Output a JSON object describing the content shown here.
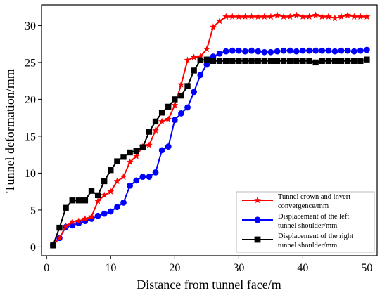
{
  "chart_data": {
    "type": "line",
    "xlabel": "Distance from tunnel face/m",
    "ylabel": "Tunnel deformation/mm",
    "xlim": [
      -0.8,
      51.6
    ],
    "ylim": [
      -1.2,
      32.8
    ],
    "xticks": [
      0,
      10,
      20,
      30,
      40,
      50
    ],
    "yticks": [
      0,
      5,
      10,
      15,
      20,
      25,
      30
    ],
    "grid": false,
    "legend_position": "lower-right",
    "series": [
      {
        "name": "Tunnel crown and invert convergence/mm",
        "legend_lines": [
          "Tunnel crown and invert",
          "convergence/mm"
        ],
        "color": "#ff0000",
        "marker": "star",
        "x": [
          1,
          2,
          3,
          4,
          5,
          6,
          7,
          8,
          9,
          10,
          11,
          12,
          13,
          14,
          15,
          16,
          17,
          18,
          19,
          20,
          21,
          22,
          23,
          24,
          25,
          26,
          27,
          28,
          29,
          30,
          31,
          32,
          33,
          34,
          35,
          36,
          37,
          38,
          39,
          40,
          41,
          42,
          43,
          44,
          45,
          46,
          47,
          48,
          49,
          50
        ],
        "y": [
          0.2,
          1.2,
          2.8,
          3.4,
          3.5,
          3.8,
          4.1,
          6.2,
          7.0,
          7.5,
          8.9,
          9.5,
          11.5,
          12.3,
          13.6,
          13.8,
          15.8,
          17.0,
          17.3,
          19.2,
          22.0,
          25.3,
          25.7,
          25.8,
          26.8,
          29.8,
          30.6,
          31.2,
          31.2,
          31.2,
          31.2,
          31.2,
          31.2,
          31.2,
          31.2,
          31.4,
          31.2,
          31.2,
          31.4,
          31.2,
          31.2,
          31.4,
          31.2,
          31.2,
          31.0,
          31.2,
          31.4,
          31.2,
          31.2,
          31.2
        ]
      },
      {
        "name": "Displacement of the left tunnel shoulder/mm",
        "legend_lines": [
          "Displacement of the left",
          "tunnel shoulder/mm"
        ],
        "color": "#0000ff",
        "marker": "circle",
        "x": [
          1,
          2,
          3,
          4,
          5,
          6,
          7,
          8,
          9,
          10,
          11,
          12,
          13,
          14,
          15,
          16,
          17,
          18,
          19,
          20,
          21,
          22,
          23,
          24,
          25,
          26,
          27,
          28,
          29,
          30,
          31,
          32,
          33,
          34,
          35,
          36,
          37,
          38,
          39,
          40,
          41,
          42,
          43,
          44,
          45,
          46,
          47,
          48,
          49,
          50
        ],
        "y": [
          0.2,
          1.2,
          2.7,
          2.9,
          3.2,
          3.5,
          3.8,
          4.2,
          4.5,
          4.8,
          5.4,
          6.0,
          8.3,
          9.0,
          9.5,
          9.5,
          10.1,
          13.1,
          13.6,
          17.2,
          18.1,
          18.9,
          21.0,
          23.3,
          24.7,
          25.8,
          26.2,
          26.5,
          26.6,
          26.6,
          26.5,
          26.6,
          26.5,
          26.4,
          26.4,
          26.5,
          26.6,
          26.6,
          26.5,
          26.6,
          26.6,
          26.6,
          26.6,
          26.6,
          26.5,
          26.6,
          26.6,
          26.5,
          26.6,
          26.7
        ]
      },
      {
        "name": "Displacement of the right tunnel shoulder/mm",
        "legend_lines": [
          "Displacement of the right",
          "tunnel shoulder/mm"
        ],
        "color": "#000000",
        "marker": "square",
        "x": [
          1,
          2,
          3,
          4,
          5,
          6,
          7,
          8,
          9,
          10,
          11,
          12,
          13,
          14,
          15,
          16,
          17,
          18,
          19,
          20,
          21,
          22,
          23,
          24,
          25,
          26,
          27,
          28,
          29,
          30,
          31,
          32,
          33,
          34,
          35,
          36,
          37,
          38,
          39,
          40,
          41,
          42,
          43,
          44,
          45,
          46,
          47,
          48,
          49,
          50
        ],
        "y": [
          0.2,
          2.6,
          5.3,
          6.3,
          6.3,
          6.3,
          7.6,
          7.0,
          8.9,
          10.4,
          11.6,
          12.2,
          12.8,
          13.0,
          13.5,
          15.6,
          17.0,
          18.2,
          19.0,
          20.0,
          20.5,
          21.8,
          23.9,
          25.3,
          25.4,
          25.2,
          25.2,
          25.2,
          25.2,
          25.2,
          25.2,
          25.2,
          25.2,
          25.2,
          25.2,
          25.2,
          25.2,
          25.2,
          25.2,
          25.2,
          25.2,
          25.0,
          25.2,
          25.2,
          25.2,
          25.2,
          25.2,
          25.2,
          25.2,
          25.4
        ]
      }
    ]
  }
}
